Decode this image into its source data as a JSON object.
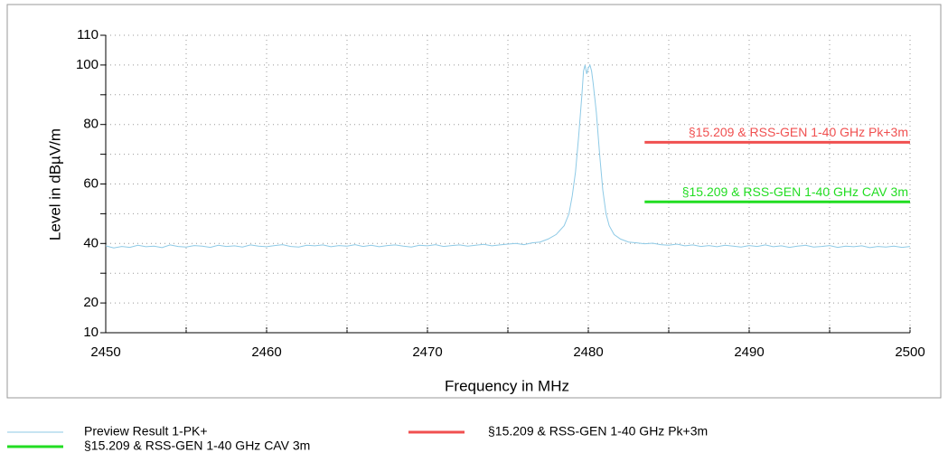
{
  "chart_data": {
    "type": "line",
    "xlabel": "Frequency in MHz",
    "ylabel": "Level in dBµV/m",
    "xlim": [
      2450,
      2500
    ],
    "xticks": [
      2450,
      2460,
      2470,
      2480,
      2490,
      2500
    ],
    "xminor_ticks": [
      2455,
      2465,
      2475,
      2485,
      2495
    ],
    "ylim": [
      10,
      110
    ],
    "yticks": [
      10,
      20,
      40,
      60,
      80,
      100,
      110
    ],
    "yminor_ticks": [
      30,
      50,
      70,
      90
    ],
    "grid": true,
    "legend": "bottom",
    "series": [
      {
        "name": "Preview Result 1-PK+",
        "color": "#8ecae6",
        "x": [
          2450,
          2450.5,
          2451,
          2451.5,
          2452,
          2452.5,
          2453,
          2453.5,
          2454,
          2454.5,
          2455,
          2455.5,
          2456,
          2456.5,
          2457,
          2457.5,
          2458,
          2458.5,
          2459,
          2459.5,
          2460,
          2460.5,
          2461,
          2461.5,
          2462,
          2462.5,
          2463,
          2463.5,
          2464,
          2464.5,
          2465,
          2465.5,
          2466,
          2466.5,
          2467,
          2467.5,
          2468,
          2468.5,
          2469,
          2469.5,
          2470,
          2470.5,
          2471,
          2471.5,
          2472,
          2472.5,
          2473,
          2473.5,
          2474,
          2474.5,
          2475,
          2475.5,
          2476,
          2476.5,
          2477,
          2477.5,
          2478,
          2478.5,
          2478.8,
          2479,
          2479.2,
          2479.4,
          2479.6,
          2479.7,
          2479.8,
          2479.9,
          2480,
          2480.1,
          2480.2,
          2480.3,
          2480.5,
          2480.7,
          2480.9,
          2481.1,
          2481.3,
          2481.6,
          2482,
          2482.5,
          2483,
          2483.5,
          2484,
          2484.5,
          2485,
          2485.5,
          2486,
          2486.5,
          2487,
          2487.5,
          2488,
          2488.5,
          2489,
          2489.5,
          2490,
          2490.5,
          2491,
          2491.5,
          2492,
          2492.5,
          2493,
          2493.5,
          2494,
          2494.5,
          2495,
          2495.5,
          2496,
          2496.5,
          2497,
          2497.5,
          2498,
          2498.5,
          2499,
          2499.5,
          2500
        ],
        "values": [
          39.2,
          38.5,
          39.0,
          38.7,
          39.4,
          38.9,
          39.1,
          38.6,
          39.5,
          39.0,
          38.8,
          39.3,
          39.1,
          38.7,
          39.4,
          39.0,
          39.2,
          38.8,
          39.5,
          39.1,
          38.9,
          39.3,
          39.6,
          39.0,
          38.8,
          39.4,
          39.2,
          39.5,
          38.9,
          39.3,
          39.1,
          39.6,
          39.0,
          39.4,
          38.9,
          39.3,
          39.5,
          39.1,
          38.8,
          39.4,
          39.2,
          39.6,
          39.0,
          39.3,
          39.5,
          39.1,
          39.4,
          39.7,
          39.2,
          39.5,
          39.8,
          40.0,
          39.6,
          40.2,
          40.5,
          41.5,
          43,
          46,
          50,
          56,
          64,
          76,
          90,
          98,
          100,
          97,
          99,
          100,
          98,
          94,
          84,
          70,
          58,
          50,
          46,
          43,
          41.5,
          40.5,
          40.2,
          39.9,
          40.1,
          39.6,
          39.4,
          39.8,
          39.2,
          39.5,
          39.0,
          39.3,
          38.9,
          39.4,
          39.1,
          38.8,
          39.3,
          39.0,
          39.5,
          38.9,
          39.2,
          38.7,
          39.1,
          39.4,
          38.8,
          39.0,
          39.3,
          38.7,
          39.1,
          38.9,
          39.2,
          38.6,
          39.0,
          38.8,
          39.1,
          38.7,
          39.0
        ]
      },
      {
        "name": "§15.209 & RSS-GEN 1-40 GHz Pk+3m",
        "color": "#f05050",
        "x": [
          2483.5,
          2500
        ],
        "values": [
          74,
          74
        ]
      },
      {
        "name": "§15.209 & RSS-GEN 1-40 GHz CAV 3m",
        "color": "#22dd22",
        "x": [
          2483.5,
          2500
        ],
        "values": [
          54,
          54
        ]
      }
    ]
  }
}
